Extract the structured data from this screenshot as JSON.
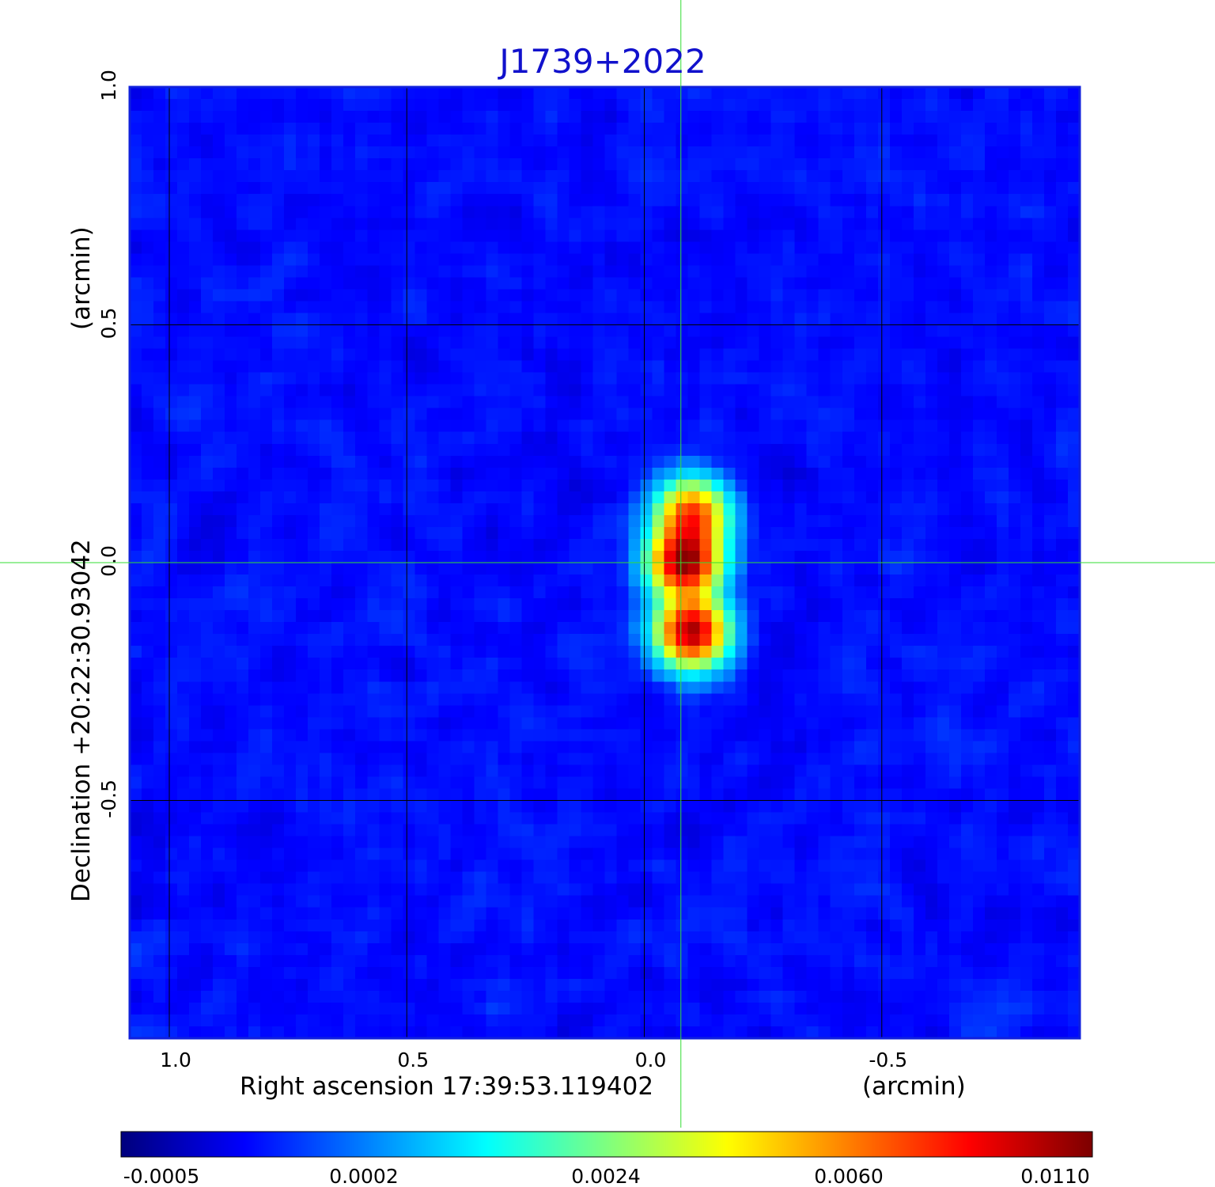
{
  "title": "J1739+2022",
  "colors": {
    "title": "#1111cc",
    "frame": "#1020dd",
    "grid": "#000000",
    "crosshair": "#33dd33"
  },
  "axes": {
    "x": {
      "label": "Right ascension  17:39:53.119402",
      "unit": "(arcmin)",
      "ticks": [
        1.0,
        0.5,
        0.0,
        -0.5
      ],
      "tick_labels": [
        "1.0",
        "0.5",
        "0.0",
        "-0.5"
      ],
      "range": [
        1.0833,
        -0.9167
      ]
    },
    "y": {
      "label": "Declination  +20:22:30.93042",
      "unit": "(arcmin)",
      "ticks": [
        1.0,
        0.5,
        0.0,
        -0.5
      ],
      "tick_labels": [
        "1.0",
        "0.5",
        "0.0",
        "-0.5"
      ],
      "range": [
        -1.0,
        1.0
      ]
    }
  },
  "crosshair": {
    "x": -0.077,
    "y": 0.0
  },
  "colorbar": {
    "colormap": "jet",
    "tick_labels": [
      "-0.0005",
      "0.0002",
      "0.0024",
      "0.0060",
      "0.0110"
    ],
    "ticks": [
      -0.0005,
      0.0002,
      0.0024,
      0.006,
      0.011
    ]
  },
  "image": {
    "pixels": 80,
    "background": "mottled blue noise",
    "sources": [
      {
        "name": "northern lobe",
        "x": -0.1,
        "y": 0.1,
        "peak": 0.0075
      },
      {
        "name": "core",
        "x": -0.085,
        "y": 0.0,
        "peak": 0.011
      },
      {
        "name": "southern lobe",
        "x": -0.1,
        "y": -0.145,
        "peak": 0.0105
      }
    ]
  }
}
